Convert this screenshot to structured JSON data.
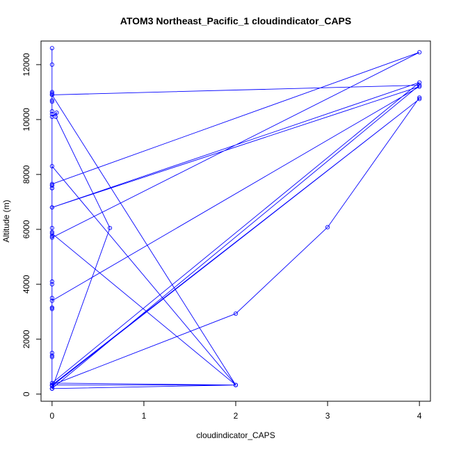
{
  "chart_data": {
    "type": "line",
    "title": "ATOM3 Northeast_Pacific_1 cloudindicator_CAPS",
    "xlabel": "cloudindicator_CAPS",
    "ylabel": "Altitude (m)",
    "xlim": [
      -0.12,
      4.12
    ],
    "ylim": [
      -260,
      12860
    ],
    "xticks": [
      0,
      1,
      2,
      3,
      4
    ],
    "yticks": [
      0,
      2000,
      4000,
      6000,
      8000,
      10000,
      12000
    ],
    "grid": false,
    "legend": "none",
    "marker": "open-circle",
    "line_color": "#0000ff",
    "series": [
      {
        "x": [
          0,
          0,
          0,
          0,
          0,
          0,
          0,
          0,
          0,
          0.05,
          0.04,
          0.63,
          0,
          0,
          0,
          0,
          0,
          0,
          0,
          0,
          0,
          0,
          0,
          0,
          4,
          0,
          0,
          0,
          0,
          0,
          2,
          0,
          4,
          0,
          0,
          0,
          0,
          2,
          0,
          4,
          0,
          4,
          0,
          0,
          0,
          0,
          0,
          0,
          2,
          0,
          0,
          4,
          0,
          0,
          2,
          3,
          4
        ],
        "y": [
          200,
          12600,
          12000,
          11000,
          10900,
          10700,
          10300,
          10200,
          10100,
          10250,
          10100,
          6050,
          200,
          1500,
          1400,
          1350,
          3500,
          3150,
          4000,
          4100,
          6050,
          5900,
          5750,
          5700,
          12450,
          7650,
          7600,
          7500,
          6800,
          5850,
          330,
          200,
          11250,
          10900,
          10950,
          10650,
          10900,
          330,
          400,
          11350,
          6800,
          11200,
          3400,
          3150,
          3100,
          7500,
          7600,
          8300,
          330,
          330,
          330,
          10750,
          300,
          330,
          2930,
          6080,
          10800
        ]
      }
    ]
  }
}
